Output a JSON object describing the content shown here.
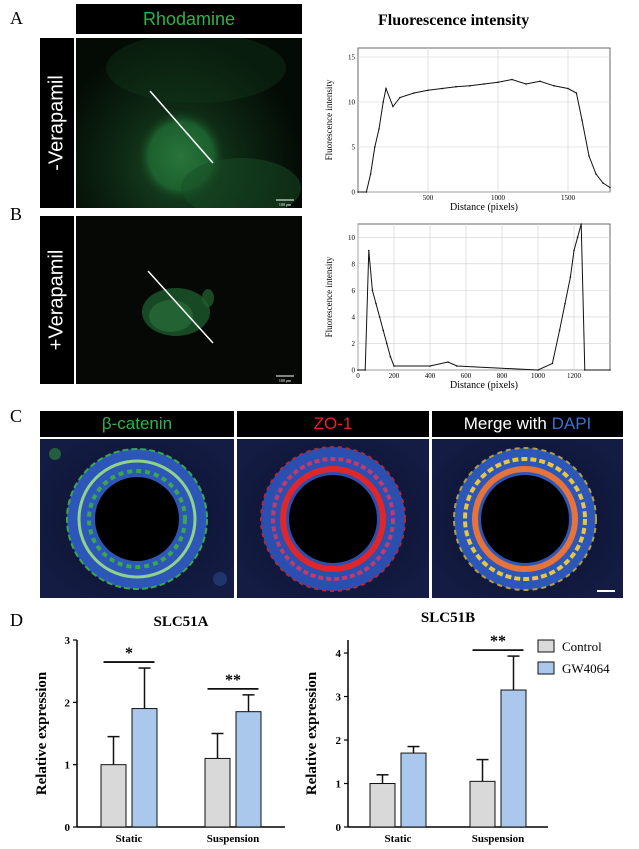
{
  "panels": {
    "a": {
      "letter": "A",
      "header": "Rhodamine",
      "side_label": "-Verapamil",
      "scale_bar": "100 μm",
      "chart_title": "Fluorescence intensity"
    },
    "b": {
      "letter": "B",
      "side_label": "+Verapamil",
      "scale_bar": "100 μm"
    },
    "c": {
      "letter": "C",
      "headers": {
        "beta_catenin": "β-catenin",
        "zo1": "ZO-1",
        "merge": "Merge with",
        "dapi": "DAPI"
      }
    },
    "d": {
      "letter": "D"
    }
  },
  "colors": {
    "green": "#2fb24a",
    "red": "#e0262a",
    "blue": "#3a6fd8",
    "control_bar": "#d9d9d9",
    "gw4064_bar": "#a9c8ec"
  },
  "chart_data": [
    {
      "type": "line",
      "xlabel": "Distance (pixels)",
      "ylabel": "Fluorescence intensity",
      "xlim": [
        0,
        1800
      ],
      "ylim": [
        0,
        16
      ],
      "xticks": [
        500,
        1000,
        1500
      ],
      "yticks": [
        0,
        5,
        10,
        15
      ],
      "grid": true,
      "x": [
        0,
        60,
        90,
        120,
        150,
        180,
        200,
        250,
        300,
        400,
        500,
        600,
        700,
        800,
        900,
        1000,
        1100,
        1200,
        1300,
        1400,
        1500,
        1560,
        1600,
        1650,
        1700,
        1750,
        1800
      ],
      "y": [
        0,
        0,
        2,
        5,
        7,
        10,
        11.5,
        9.5,
        10.5,
        11,
        11.3,
        11.5,
        11.7,
        11.8,
        12,
        12.2,
        12.5,
        12,
        12.3,
        11.8,
        11.5,
        11,
        8,
        4,
        2,
        1,
        0.5
      ]
    },
    {
      "type": "line",
      "xlabel": "Distance (pixels)",
      "ylabel": "Fluorescence intensity",
      "xlim": [
        0,
        1400
      ],
      "ylim": [
        0,
        11
      ],
      "xticks": [
        0,
        200,
        400,
        600,
        800,
        1000,
        1200
      ],
      "yticks": [
        0,
        2,
        4,
        6,
        8,
        10
      ],
      "grid": true,
      "x": [
        0,
        40,
        60,
        80,
        100,
        120,
        140,
        160,
        180,
        200,
        400,
        500,
        550,
        1000,
        1080,
        1120,
        1150,
        1180,
        1200,
        1220,
        1240,
        1260,
        1400
      ],
      "y": [
        0,
        0,
        9,
        6,
        5,
        4,
        3,
        2,
        1,
        0.3,
        0.3,
        0.6,
        0.3,
        0,
        0.5,
        3,
        5,
        7,
        9,
        10,
        11,
        0,
        0
      ]
    },
    {
      "type": "bar",
      "title": "SLC51A",
      "ylabel": "Relative expression",
      "categories": [
        "Static",
        "Suspension"
      ],
      "series": [
        {
          "name": "Control",
          "values": [
            1.0,
            1.1
          ],
          "errors": [
            0.45,
            0.4
          ]
        },
        {
          "name": "GW4064",
          "values": [
            1.9,
            1.85
          ],
          "errors": [
            0.65,
            0.27
          ]
        }
      ],
      "ylim": [
        0,
        3
      ],
      "yticks": [
        0,
        1,
        2,
        3
      ],
      "significance": [
        "*",
        "**"
      ]
    },
    {
      "type": "bar",
      "title": "SLC51B",
      "ylabel": "Relative expression",
      "categories": [
        "Static",
        "Suspension"
      ],
      "series": [
        {
          "name": "Control",
          "values": [
            1.0,
            1.05
          ],
          "errors": [
            0.2,
            0.5
          ]
        },
        {
          "name": "GW4064",
          "values": [
            1.7,
            3.15
          ],
          "errors": [
            0.15,
            0.78
          ]
        }
      ],
      "ylim": [
        0,
        4.3
      ],
      "yticks": [
        0,
        1,
        2,
        3,
        4
      ],
      "significance": [
        "",
        "**"
      ],
      "legend_placement": "top-right"
    }
  ]
}
